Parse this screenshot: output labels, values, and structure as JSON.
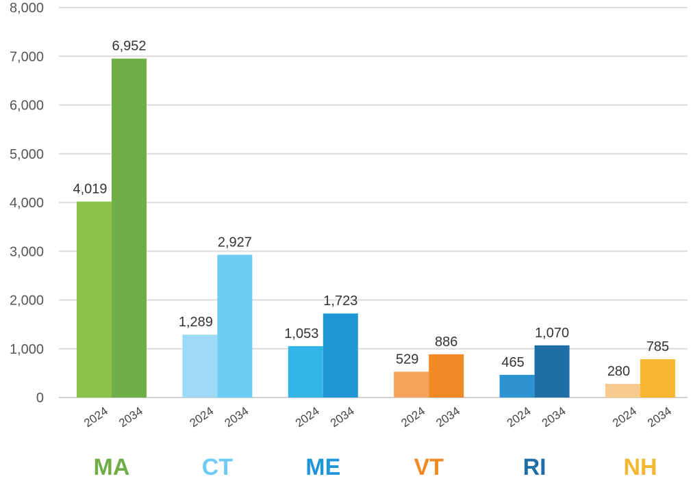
{
  "chart_data": {
    "type": "bar",
    "title": "",
    "xlabel": "",
    "ylabel": "",
    "ylim": [
      0,
      8000
    ],
    "yticks": [
      0,
      1000,
      2000,
      3000,
      4000,
      5000,
      6000,
      7000,
      8000
    ],
    "ytick_labels": [
      "0",
      "1,000",
      "2,000",
      "3,000",
      "4,000",
      "5,000",
      "6,000",
      "7,000",
      "8,000"
    ],
    "grid": true,
    "year_labels": [
      "2024",
      "2034"
    ],
    "groups": [
      {
        "name": "MA",
        "color": "#70ad47",
        "values": [
          4019,
          6952
        ],
        "labels": [
          "4,019",
          "6,952"
        ],
        "colors": [
          "#8bc34a",
          "#70ad47"
        ]
      },
      {
        "name": "CT",
        "color": "#6ecbf5",
        "values": [
          1289,
          2927
        ],
        "labels": [
          "1,289",
          "2,927"
        ],
        "colors": [
          "#9ddaf5",
          "#6ecbf1"
        ]
      },
      {
        "name": "ME",
        "color": "#1e96d8",
        "values": [
          1053,
          1723
        ],
        "labels": [
          "1,053",
          "1,723"
        ],
        "colors": [
          "#33b5e8",
          "#1f97d5"
        ]
      },
      {
        "name": "VT",
        "color": "#f08a24",
        "values": [
          529,
          886
        ],
        "labels": [
          "529",
          "886"
        ],
        "colors": [
          "#f5a25d",
          "#f08a24"
        ]
      },
      {
        "name": "RI",
        "color": "#1f6ea5",
        "values": [
          465,
          1070
        ],
        "labels": [
          "465",
          "1,070"
        ],
        "colors": [
          "#2e93d1",
          "#1f6ea5"
        ]
      },
      {
        "name": "NH",
        "color": "#f5b731",
        "values": [
          280,
          785
        ],
        "labels": [
          "280",
          "785"
        ],
        "colors": [
          "#f9ca8e",
          "#f7b731"
        ]
      }
    ]
  }
}
